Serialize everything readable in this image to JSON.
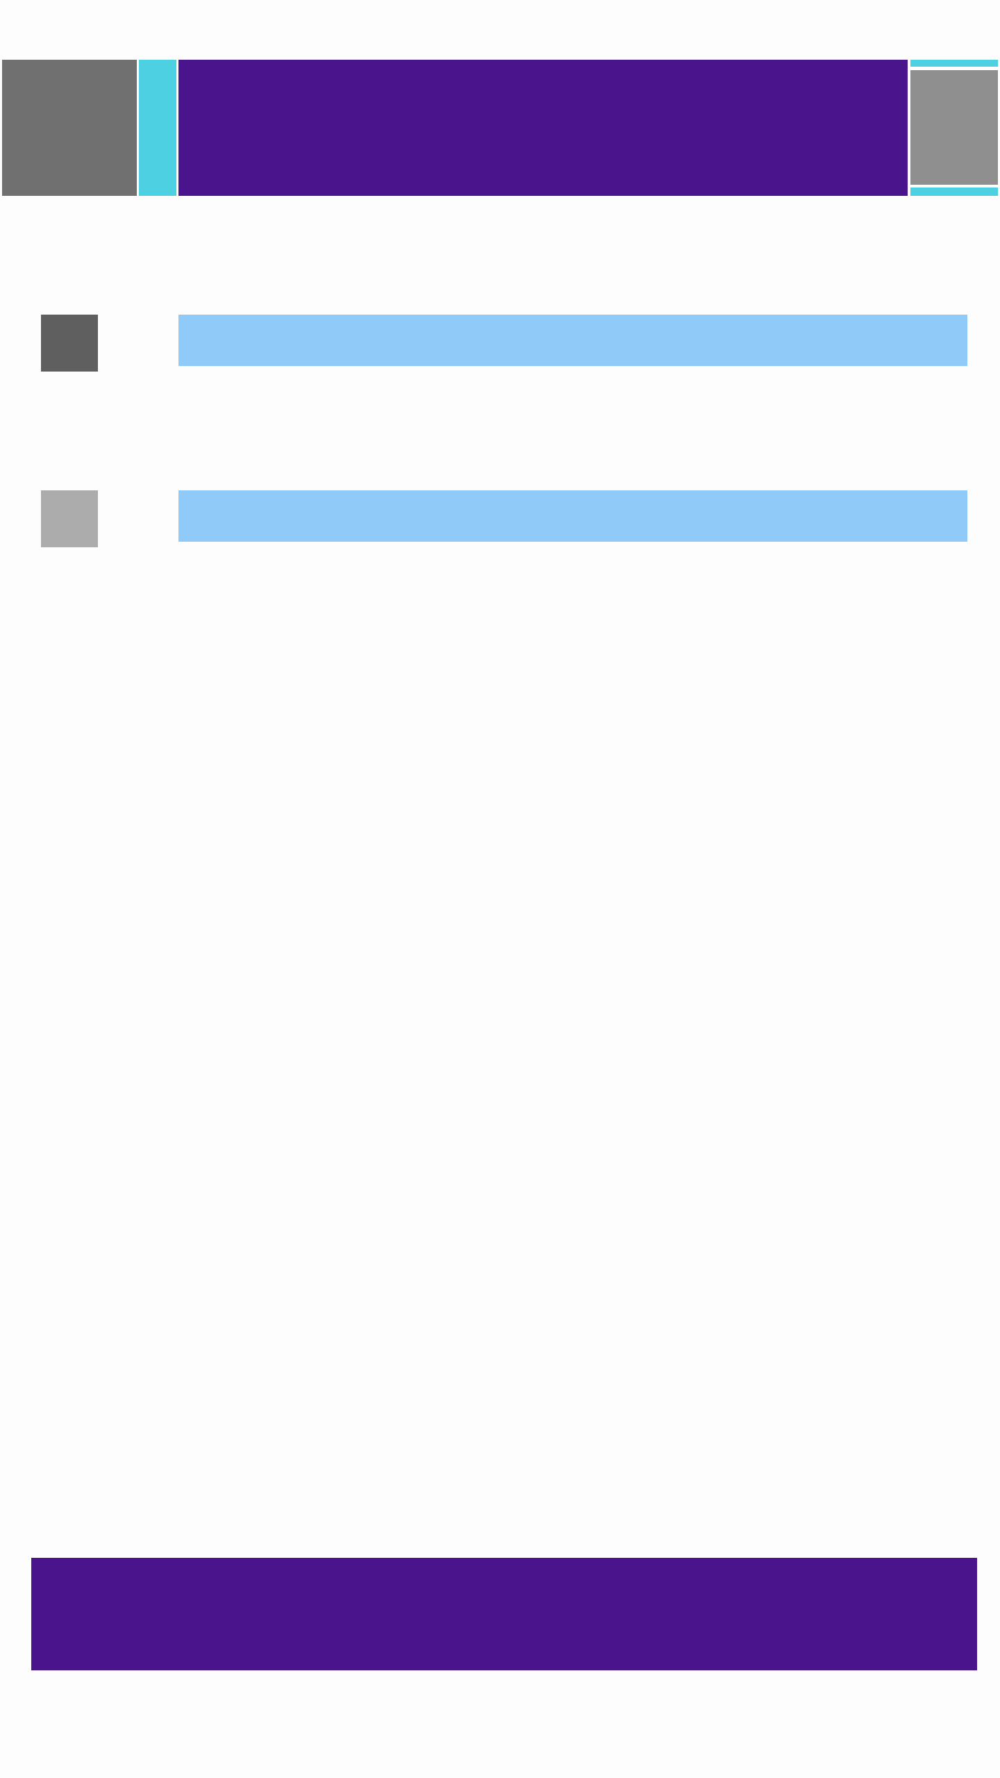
{
  "colors": {
    "background": "#fdfdfd",
    "brand_purple": "#4a148c",
    "accent_cyan": "#4dd0e1",
    "light_blue": "#90caf9",
    "header_left_gray": "#707070",
    "header_right_gray": "#8f8f8f",
    "row_1_thumb_gray": "#5f5f5f",
    "row_2_thumb_gray": "#acacac"
  },
  "header": {
    "left_image_icon": "image-placeholder",
    "right_image_icon": "image-placeholder"
  },
  "rows": [
    {
      "thumbnail_icon": "image-placeholder"
    },
    {
      "thumbnail_icon": "image-placeholder"
    }
  ],
  "footer": {}
}
